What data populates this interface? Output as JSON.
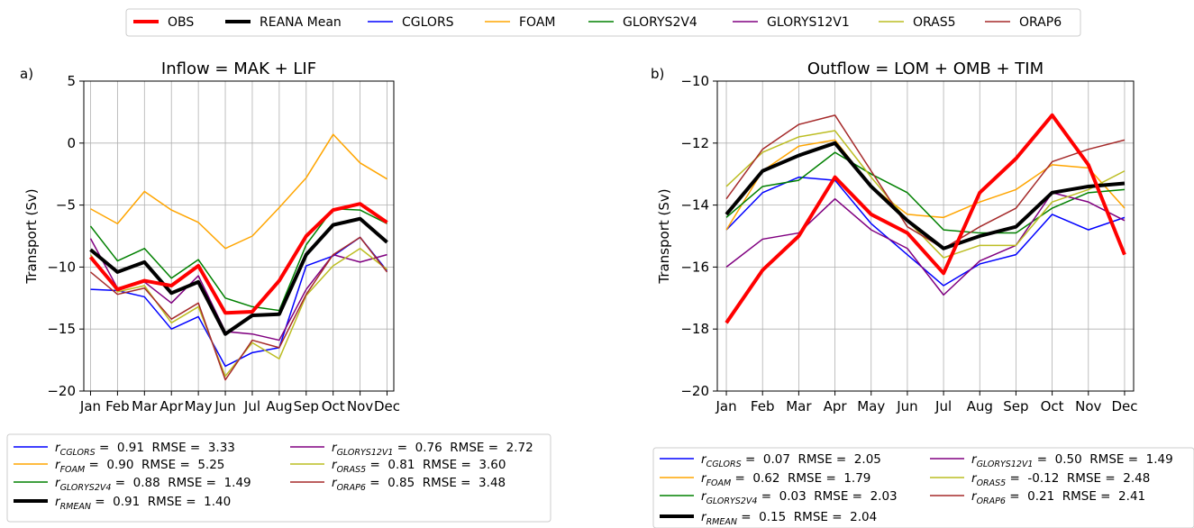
{
  "colors": {
    "OBS": "#ff0000",
    "REANA Mean": "#000000",
    "CGLORS": "#0000ff",
    "FOAM": "#ffa500",
    "GLORYS2V4": "#008000",
    "GLORYS12V1": "#800080",
    "ORAS5": "#bcbd22",
    "ORAP6": "#a52a2a"
  },
  "legend": [
    "OBS",
    "REANA Mean",
    "CGLORS",
    "FOAM",
    "GLORYS2V4",
    "GLORYS12V1",
    "ORAS5",
    "ORAP6"
  ],
  "chart_data": [
    {
      "type": "line",
      "panel_label": "a)",
      "title": "Inflow = MAK + LIF",
      "xlabel": "",
      "ylabel": "Transport (Sv)",
      "ylim": [
        -20,
        5
      ],
      "yticks": [
        5,
        0,
        -5,
        -10,
        -15,
        -20
      ],
      "yticklabels": [
        "5",
        "0",
        "−5",
        "−10",
        "−15",
        "−20"
      ],
      "grid": true,
      "categories": [
        "Jan",
        "Feb",
        "Mar",
        "Apr",
        "May",
        "Jun",
        "Jul",
        "Aug",
        "Sep",
        "Oct",
        "Nov",
        "Dec"
      ],
      "series": [
        {
          "name": "CGLORS",
          "values": [
            -11.8,
            -11.9,
            -12.4,
            -15.0,
            -14.0,
            -18.0,
            -16.9,
            -16.5,
            -9.9,
            -9.1,
            -7.6,
            -10.3
          ]
        },
        {
          "name": "FOAM",
          "values": [
            -5.3,
            -6.5,
            -3.9,
            -5.4,
            -6.4,
            -8.5,
            -7.5,
            -5.2,
            -2.8,
            0.7,
            -1.6,
            -2.9
          ]
        },
        {
          "name": "GLORYS2V4",
          "values": [
            -6.7,
            -9.5,
            -8.5,
            -10.9,
            -9.4,
            -12.5,
            -13.2,
            -13.5,
            -8.2,
            -5.3,
            -5.4,
            -6.5
          ]
        },
        {
          "name": "GLORYS12V1",
          "values": [
            -7.7,
            -11.7,
            -11.2,
            -12.9,
            -10.7,
            -15.2,
            -15.4,
            -15.9,
            -11.8,
            -9.0,
            -9.6,
            -9.0
          ]
        },
        {
          "name": "ORAS5",
          "values": [
            -9.0,
            -12.0,
            -11.5,
            -14.5,
            -13.2,
            -18.8,
            -16.1,
            -17.4,
            -12.3,
            -9.9,
            -8.5,
            -10.2
          ]
        },
        {
          "name": "ORAP6",
          "values": [
            -10.4,
            -12.2,
            -11.7,
            -14.2,
            -12.9,
            -19.1,
            -15.9,
            -16.5,
            -12.2,
            -9.0,
            -7.6,
            -10.4
          ]
        },
        {
          "name": "REANA Mean",
          "values": [
            -8.6,
            -10.4,
            -9.6,
            -12.1,
            -11.2,
            -15.4,
            -13.9,
            -13.8,
            -9.0,
            -6.6,
            -6.1,
            -8.0
          ]
        },
        {
          "name": "OBS",
          "values": [
            -9.2,
            -11.8,
            -11.1,
            -11.5,
            -9.9,
            -13.7,
            -13.6,
            -11.1,
            -7.5,
            -5.4,
            -4.9,
            -6.4
          ]
        }
      ],
      "stats": [
        {
          "sub": "CGLORS",
          "r": "0.91",
          "rmse": "3.33"
        },
        {
          "sub": "FOAM",
          "r": "0.90",
          "rmse": "5.25"
        },
        {
          "sub": "GLORYS2V4",
          "r": "0.88",
          "rmse": "1.49"
        },
        {
          "sub": "RMEAN",
          "r": "0.91",
          "rmse": "1.40"
        },
        {
          "sub": "GLORYS12V1",
          "r": "0.76",
          "rmse": "2.72"
        },
        {
          "sub": "ORAS5",
          "r": "0.81",
          "rmse": "3.60"
        },
        {
          "sub": "ORAP6",
          "r": "0.85",
          "rmse": "3.48"
        }
      ]
    },
    {
      "type": "line",
      "panel_label": "b)",
      "title": "Outflow = LOM + OMB + TIM",
      "xlabel": "",
      "ylabel": "Transport (Sv)",
      "ylim": [
        -20,
        -10
      ],
      "yticks": [
        -10,
        -12,
        -14,
        -16,
        -18,
        -20
      ],
      "yticklabels": [
        "−10",
        "−12",
        "−14",
        "−16",
        "−18",
        "−20"
      ],
      "grid": true,
      "categories": [
        "Jan",
        "Feb",
        "Mar",
        "Apr",
        "May",
        "Jun",
        "Jul",
        "Aug",
        "Sep",
        "Oct",
        "Nov",
        "Dec"
      ],
      "series": [
        {
          "name": "CGLORS",
          "values": [
            -14.8,
            -13.6,
            -13.1,
            -13.2,
            -14.6,
            -15.6,
            -16.6,
            -15.9,
            -15.6,
            -14.3,
            -14.8,
            -14.4
          ]
        },
        {
          "name": "FOAM",
          "values": [
            -14.8,
            -12.9,
            -12.1,
            -11.9,
            -13.4,
            -14.3,
            -14.4,
            -13.9,
            -13.5,
            -12.7,
            -12.8,
            -14.1
          ]
        },
        {
          "name": "GLORYS2V4",
          "values": [
            -14.4,
            -13.4,
            -13.2,
            -12.3,
            -13.0,
            -13.6,
            -14.8,
            -14.9,
            -14.9,
            -14.1,
            -13.6,
            -13.5
          ]
        },
        {
          "name": "GLORYS12V1",
          "values": [
            -16.0,
            -15.1,
            -14.9,
            -13.8,
            -14.8,
            -15.4,
            -16.9,
            -15.8,
            -15.3,
            -13.6,
            -13.9,
            -14.5
          ]
        },
        {
          "name": "ORAS5",
          "values": [
            -13.4,
            -12.3,
            -11.8,
            -11.6,
            -13.1,
            -14.5,
            -15.7,
            -15.3,
            -15.3,
            -13.9,
            -13.5,
            -12.9
          ]
        },
        {
          "name": "ORAP6",
          "values": [
            -13.8,
            -12.2,
            -11.4,
            -11.1,
            -12.9,
            -14.7,
            -15.4,
            -14.7,
            -14.1,
            -12.6,
            -12.2,
            -11.9
          ]
        },
        {
          "name": "REANA Mean",
          "values": [
            -14.3,
            -12.9,
            -12.4,
            -12.0,
            -13.4,
            -14.5,
            -15.4,
            -15.0,
            -14.7,
            -13.6,
            -13.4,
            -13.3
          ]
        },
        {
          "name": "OBS",
          "values": [
            -17.8,
            -16.1,
            -15.0,
            -13.1,
            -14.3,
            -14.9,
            -16.2,
            -13.6,
            -12.5,
            -11.1,
            -12.7,
            -15.6
          ]
        }
      ],
      "stats": [
        {
          "sub": "CGLORS",
          "r": "0.07",
          "rmse": "2.05"
        },
        {
          "sub": "FOAM",
          "r": "0.62",
          "rmse": "1.79"
        },
        {
          "sub": "GLORYS2V4",
          "r": "0.03",
          "rmse": "2.03"
        },
        {
          "sub": "RMEAN",
          "r": "0.15",
          "rmse": "2.04"
        },
        {
          "sub": "GLORYS12V1",
          "r": "0.50",
          "rmse": "1.49"
        },
        {
          "sub": "ORAS5",
          "r": "-0.12",
          "rmse": "2.48"
        },
        {
          "sub": "ORAP6",
          "r": "0.21",
          "rmse": "2.41"
        }
      ]
    }
  ]
}
